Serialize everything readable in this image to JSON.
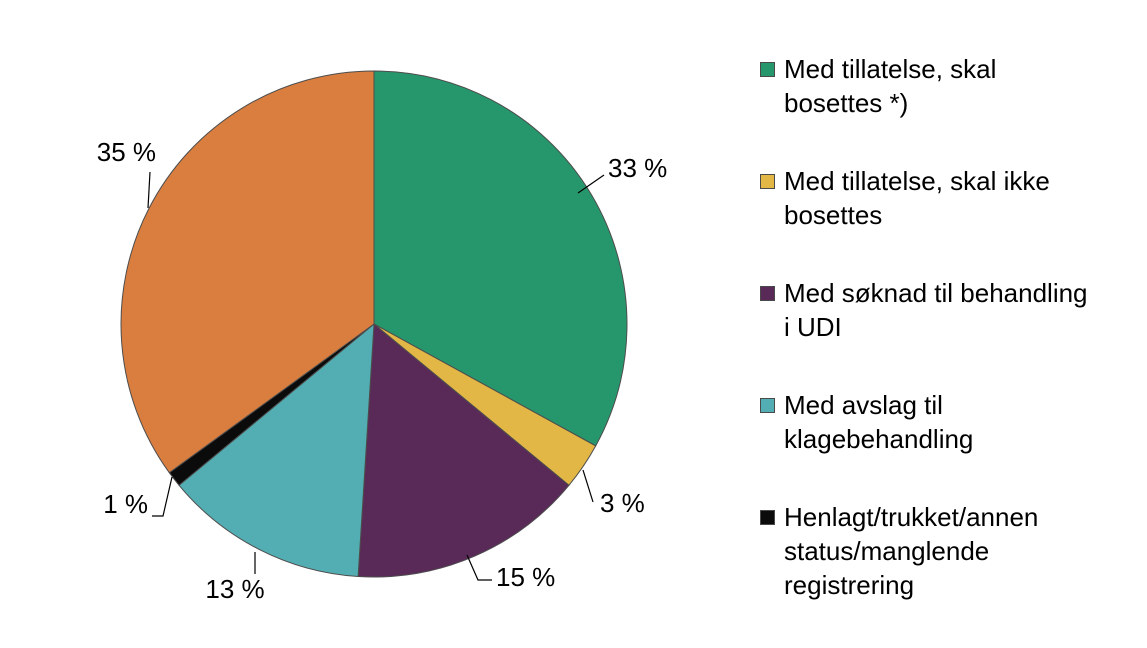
{
  "chart_data": {
    "type": "pie",
    "slices": [
      {
        "label": "Med tillatelse, skal bosettes *)",
        "value": 33,
        "value_label": "33 %",
        "color": "#26976c"
      },
      {
        "label": "Med tillatelse, skal ikke bosettes",
        "value": 3,
        "value_label": "3 %",
        "color": "#e2b746"
      },
      {
        "label": "Med søknad til behandling i UDI",
        "value": 15,
        "value_label": "15 %",
        "color": "#592a58"
      },
      {
        "label": "Med avslag til klagebehandling",
        "value": 13,
        "value_label": "13 %",
        "color": "#53aeb3"
      },
      {
        "label": "Henlagt/trukket/annen status/manglende registrering",
        "value": 1,
        "value_label": "1 %",
        "color": "#0b0b0b"
      },
      {
        "label": "",
        "value": 35,
        "value_label": "35 %",
        "color": "#d97e3f"
      }
    ],
    "start_angle": "12 o'clock",
    "direction": "clockwise",
    "legend_position": "right"
  },
  "legend": [
    {
      "text": "Med tillatelse, skal\nbosettes     *)",
      "color": "#26976c"
    },
    {
      "text": "Med tillatelse, skal ikke\nbosettes",
      "color": "#e2b746"
    },
    {
      "text": "Med søknad til behandling\ni UDI",
      "color": "#592a58"
    },
    {
      "text": "Med avslag til\nklagebehandling",
      "color": "#53aeb3"
    },
    {
      "text": "Henlagt/trukket/annen\nstatus/manglende\nregistrering",
      "color": "#0b0b0b"
    }
  ]
}
